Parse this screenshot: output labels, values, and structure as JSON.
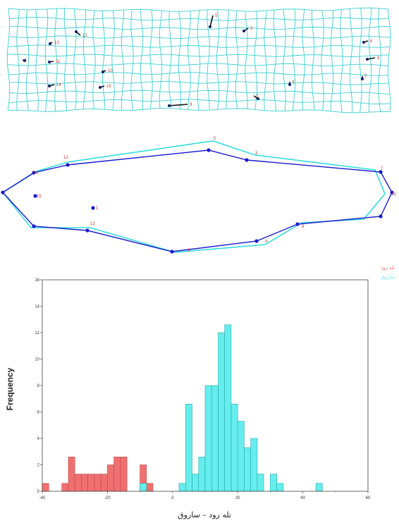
{
  "figure": {
    "grid_landmarks": [
      {
        "label": "5"
      },
      {
        "label": "12"
      },
      {
        "label": "3"
      },
      {
        "label": "13"
      },
      {
        "label": "1"
      },
      {
        "label": "11"
      },
      {
        "label": "10"
      },
      {
        "label": "14"
      },
      {
        "label": "15"
      },
      {
        "label": "2"
      },
      {
        "label": "4"
      },
      {
        "label": "6"
      },
      {
        "label": "8"
      },
      {
        "label": "7"
      },
      {
        "label": "9"
      }
    ],
    "outline_labels": [
      "5",
      "3",
      "12",
      "13",
      "4",
      "1",
      "6",
      "8",
      "7",
      "11",
      "15",
      "14"
    ],
    "colors": {
      "grid": "#3ecfd0",
      "outline_dark": "#1a1acc",
      "outline_light": "#33dddd",
      "label": "#cc3333",
      "bar_red": "#f07070",
      "bar_cyan": "#66eeee"
    }
  },
  "chart_data": {
    "type": "histogram",
    "xlabel": "تله رود – ساروق",
    "ylabel": "Frequency",
    "xlim": [
      -40,
      60
    ],
    "ylim": [
      0,
      16
    ],
    "x_ticks": [
      -40,
      -20,
      0,
      20,
      40,
      60
    ],
    "y_ticks": [
      0,
      2,
      4,
      6,
      8,
      10,
      12,
      14,
      16
    ],
    "x_tick_labels": [
      "-40",
      "-20",
      "0",
      "20",
      "40",
      "60"
    ],
    "y_tick_labels": [
      "0",
      "2",
      "4",
      "6",
      "8",
      "10",
      "12",
      "14",
      "16"
    ],
    "legend": {
      "placement": "top-right"
    },
    "series": [
      {
        "name": "تله رود",
        "color": "#f07070",
        "bins": [
          {
            "x0": -40,
            "x1": -38,
            "y": 0.6
          },
          {
            "x0": -34,
            "x1": -32,
            "y": 0.6
          },
          {
            "x0": -32,
            "x1": -30,
            "y": 2.6
          },
          {
            "x0": -30,
            "x1": -28,
            "y": 1.3
          },
          {
            "x0": -28,
            "x1": -26,
            "y": 1.3
          },
          {
            "x0": -26,
            "x1": -24,
            "y": 1.3
          },
          {
            "x0": -24,
            "x1": -22,
            "y": 1.3
          },
          {
            "x0": -22,
            "x1": -20,
            "y": 1.3
          },
          {
            "x0": -20,
            "x1": -18,
            "y": 2.0
          },
          {
            "x0": -18,
            "x1": -16,
            "y": 2.6
          },
          {
            "x0": -16,
            "x1": -14,
            "y": 2.6
          },
          {
            "x0": -10,
            "x1": -8,
            "y": 2.0
          },
          {
            "x0": -8,
            "x1": -6,
            "y": 0.6
          }
        ]
      },
      {
        "name": "ساروق",
        "color": "#66eeee",
        "bins": [
          {
            "x0": -10,
            "x1": -8,
            "y": 0.6
          },
          {
            "x0": 2,
            "x1": 4,
            "y": 0.6
          },
          {
            "x0": 4,
            "x1": 6,
            "y": 6.6
          },
          {
            "x0": 6,
            "x1": 8,
            "y": 1.3
          },
          {
            "x0": 8,
            "x1": 10,
            "y": 2.6
          },
          {
            "x0": 10,
            "x1": 12,
            "y": 8.0
          },
          {
            "x0": 12,
            "x1": 14,
            "y": 8.0
          },
          {
            "x0": 14,
            "x1": 16,
            "y": 12.0
          },
          {
            "x0": 16,
            "x1": 18,
            "y": 12.6
          },
          {
            "x0": 18,
            "x1": 20,
            "y": 6.6
          },
          {
            "x0": 20,
            "x1": 22,
            "y": 5.3
          },
          {
            "x0": 22,
            "x1": 24,
            "y": 3.3
          },
          {
            "x0": 24,
            "x1": 26,
            "y": 4.0
          },
          {
            "x0": 26,
            "x1": 28,
            "y": 1.3
          },
          {
            "x0": 30,
            "x1": 32,
            "y": 1.3
          },
          {
            "x0": 32,
            "x1": 34,
            "y": 0.6
          },
          {
            "x0": 44,
            "x1": 46,
            "y": 0.6
          }
        ]
      }
    ]
  }
}
